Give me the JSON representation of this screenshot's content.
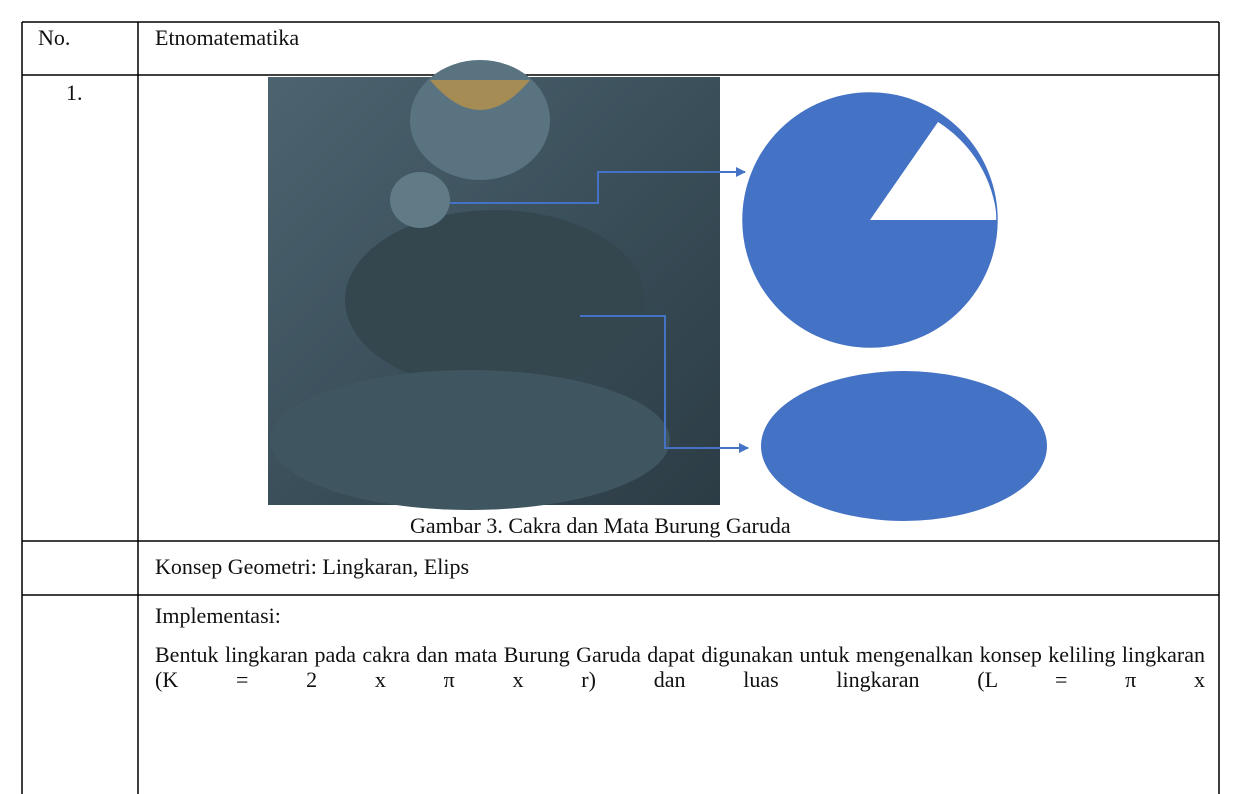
{
  "table": {
    "header": [
      "No.",
      "Etnomatematika"
    ],
    "rows": [
      {
        "no": "1.",
        "caption": "Gambar 3. Cakra dan Mata Burung Garuda"
      },
      {
        "text": "Konsep Geometri: Lingkaran, Elips"
      },
      {
        "heading": "Implementasi:",
        "text": "Bentuk lingkaran pada cakra dan mata Burung Garuda dapat digunakan untuk mengenalkan konsep keliling lingkaran (K = 2 x π x r) dan luas lingkaran (L = π x"
      }
    ]
  }
}
